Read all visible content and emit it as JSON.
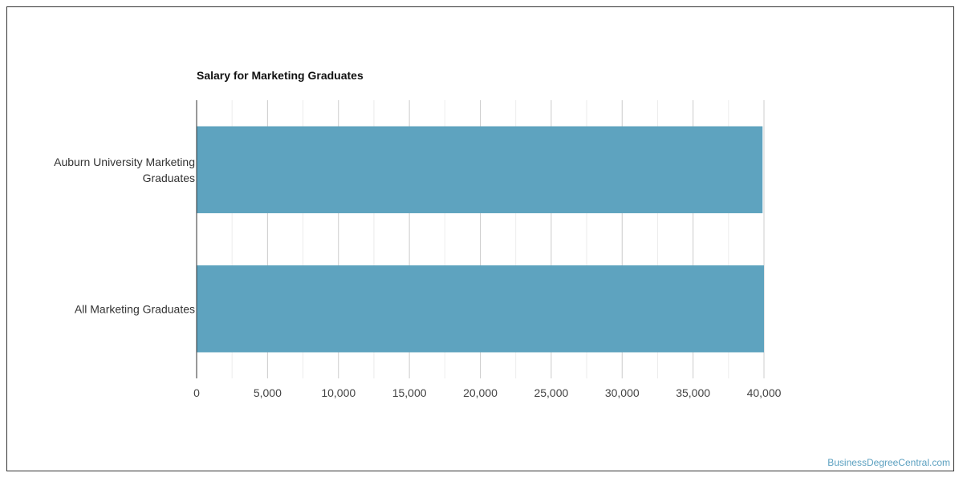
{
  "chart_data": {
    "type": "bar",
    "orientation": "horizontal",
    "title": "Salary for Marketing Graduates",
    "categories": [
      [
        "Auburn University Marketing",
        "Graduates"
      ],
      [
        "All Marketing Graduates"
      ]
    ],
    "values": [
      39900,
      40000
    ],
    "xlim": [
      0,
      40000
    ],
    "x_ticks": [
      0,
      5000,
      10000,
      15000,
      20000,
      25000,
      30000,
      35000,
      40000
    ],
    "x_tick_labels": [
      "0",
      "5,000",
      "10,000",
      "15,000",
      "20,000",
      "25,000",
      "30,000",
      "35,000",
      "40,000"
    ],
    "grid": true,
    "bar_color": "#5ea3bf",
    "xlabel": "",
    "ylabel": ""
  },
  "watermark": "BusinessDegreeCentral.com"
}
